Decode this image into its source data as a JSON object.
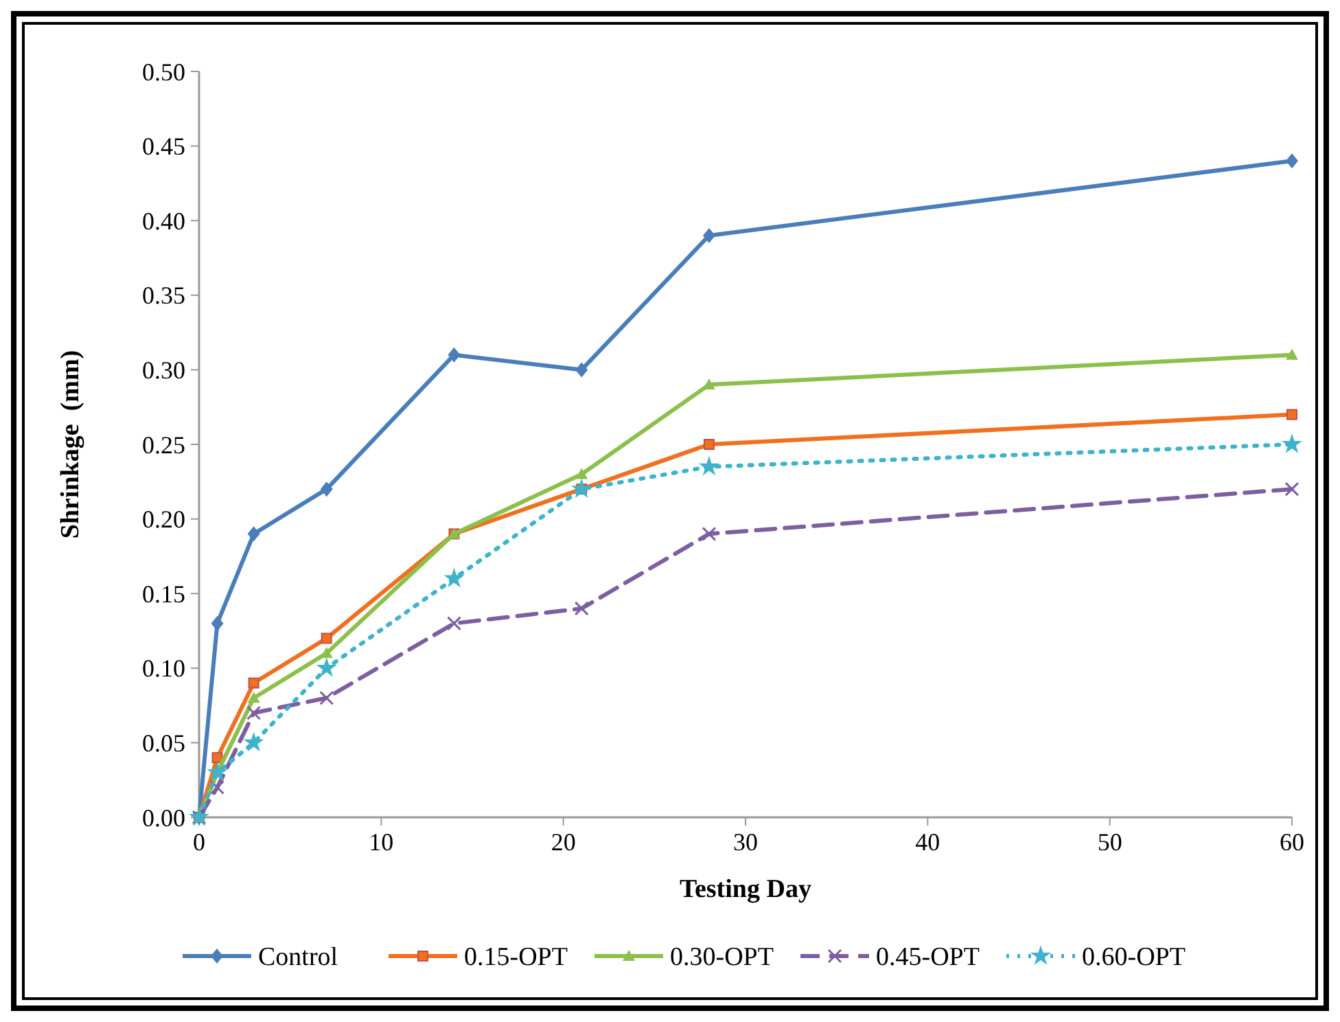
{
  "chart_data": {
    "type": "line",
    "xlabel": "Testing Day",
    "ylabel": "Shrinkage  (mm)",
    "x": [
      0,
      1,
      3,
      7,
      14,
      21,
      28,
      60
    ],
    "xlim": [
      0,
      60
    ],
    "xticks": [
      0,
      10,
      20,
      30,
      40,
      50,
      60
    ],
    "ylim": [
      0,
      0.5
    ],
    "yticks": [
      {
        "value": 0,
        "label": "0.00"
      },
      {
        "value": 0.05,
        "label": "0.05"
      },
      {
        "value": 0.1,
        "label": "0.10"
      },
      {
        "value": 0.15,
        "label": "0.15"
      },
      {
        "value": 0.2,
        "label": "0.20"
      },
      {
        "value": 0.25,
        "label": "0.25"
      },
      {
        "value": 0.3,
        "label": "0.30"
      },
      {
        "value": 0.35,
        "label": "0.35"
      },
      {
        "value": 0.4,
        "label": "0.40"
      },
      {
        "value": 0.45,
        "label": "0.45"
      },
      {
        "value": 0.5,
        "label": "0.50"
      }
    ],
    "grid": false,
    "legend": "bottom",
    "series": [
      {
        "name": "Control",
        "color": "#4a7ebb",
        "marker": "diamond",
        "line_style": "solid",
        "values": [
          0,
          0.13,
          0.19,
          0.22,
          0.31,
          0.3,
          0.39,
          0.44
        ]
      },
      {
        "name": "0.15-OPT",
        "color": "#f07020",
        "marker": "square",
        "line_style": "solid",
        "values": [
          0,
          0.04,
          0.09,
          0.12,
          0.19,
          0.22,
          0.25,
          0.27
        ]
      },
      {
        "name": "0.30-OPT",
        "color": "#8cc04c",
        "marker": "triangle",
        "line_style": "solid",
        "values": [
          0,
          0.03,
          0.08,
          0.11,
          0.19,
          0.23,
          0.29,
          0.31
        ]
      },
      {
        "name": "0.45-OPT",
        "color": "#7d5fa0",
        "marker": "cross",
        "line_style": "dashed",
        "values": [
          0,
          0.02,
          0.07,
          0.08,
          0.13,
          0.14,
          0.19,
          0.22
        ]
      },
      {
        "name": "0.60-OPT",
        "color": "#3fb3cc",
        "marker": "star",
        "line_style": "dotted",
        "values": [
          0,
          0.03,
          0.05,
          0.1,
          0.16,
          0.22,
          0.235,
          0.25
        ]
      }
    ]
  }
}
